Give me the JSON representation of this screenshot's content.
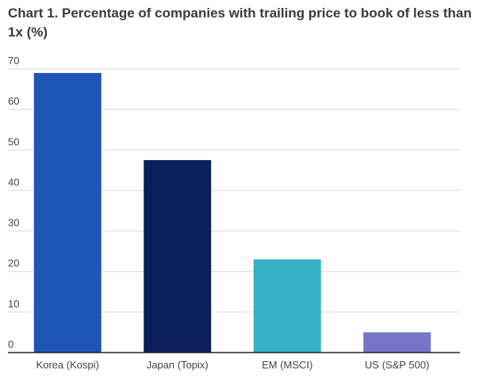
{
  "chart_data": {
    "type": "bar",
    "title": "Chart 1. Percentage of companies with trailing price to book of less than 1x (%)",
    "categories": [
      "Korea (Kospi)",
      "Japan (Topix)",
      "EM (MSCI)",
      "US (S&P 500)"
    ],
    "values": [
      69,
      47.5,
      23,
      5
    ],
    "colors": [
      "#1f55b5",
      "#0c1f5a",
      "#37b0c6",
      "#7575c7"
    ],
    "ylim": [
      0,
      70
    ],
    "yticks": [
      0,
      10,
      20,
      30,
      40,
      50,
      60,
      70
    ],
    "grid": true,
    "legend": "none"
  }
}
